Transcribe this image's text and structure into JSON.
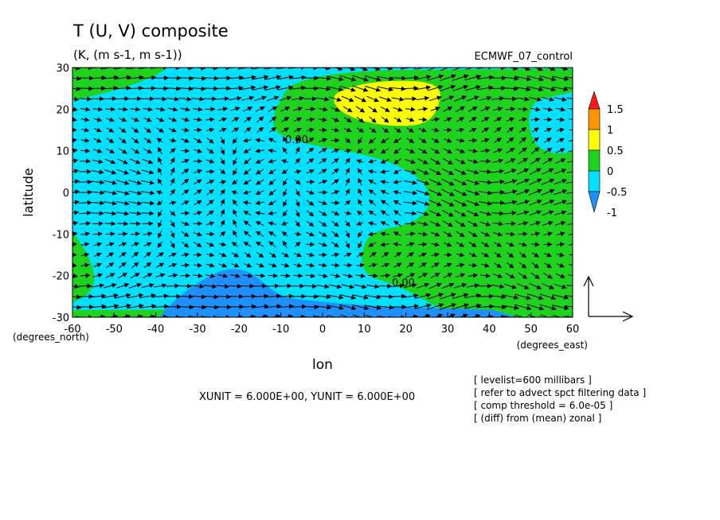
{
  "chart_data": {
    "type": "heatmap",
    "title": "T (U, V) composite",
    "subtitle": "(K, (m s-1, m s-1))",
    "dataset": "ECMWF_07_control",
    "xlabel": "lon",
    "ylabel": "latitude",
    "x_unit_label": "(degrees_east)",
    "y_unit_label": "(degrees_north)",
    "xlim": [
      -60,
      60
    ],
    "ylim": [
      -30,
      30
    ],
    "x_ticks": [
      "-60",
      "-50",
      "-40",
      "-30",
      "-20",
      "-10",
      "0",
      "10",
      "20",
      "30",
      "40",
      "50",
      "60"
    ],
    "y_ticks": [
      "30",
      "20",
      "10",
      "0",
      "-10",
      "-20",
      "-30"
    ],
    "contour_label": "0.00",
    "colorbar": {
      "labels": [
        "1.5",
        "1",
        "0.5",
        "0",
        "-0.5",
        "-1"
      ],
      "levels": [
        -1.5,
        -1,
        -0.5,
        0,
        0.5,
        1,
        1.5
      ],
      "colors": [
        "#1e90ff",
        "#00e0ff",
        "#1ed21e",
        "#ffff00",
        "#ff9600",
        "#ff1a1a"
      ]
    },
    "overlay": "wind vectors (U, V)",
    "vector_units": "XUNIT = 6.000E+00, YUNIT = 6.000E+00",
    "annotations": [
      "[ levelist=600 millibars ]",
      "[ refer to advect spct filtering data ]",
      "[ comp threshold = 6.0e-05 ]",
      "[ (diff) from (mean) zonal ]"
    ]
  }
}
